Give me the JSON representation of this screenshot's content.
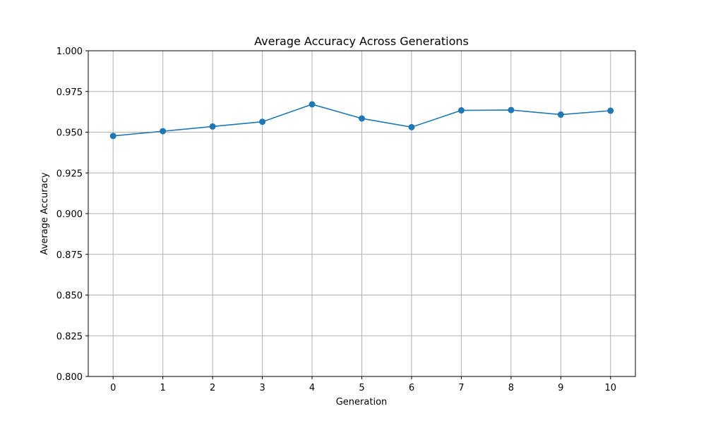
{
  "chart_data": {
    "type": "line",
    "title": "Average Accuracy Across Generations",
    "xlabel": "Generation",
    "ylabel": "Average Accuracy",
    "x": [
      0,
      1,
      2,
      3,
      4,
      5,
      6,
      7,
      8,
      9,
      10
    ],
    "xlim": [
      -0.5,
      10.5
    ],
    "ylim": [
      0.8,
      1.0
    ],
    "xticks": [
      "0",
      "1",
      "2",
      "3",
      "4",
      "5",
      "6",
      "7",
      "8",
      "9",
      "10"
    ],
    "yticks": [
      "0.800",
      "0.825",
      "0.850",
      "0.875",
      "0.900",
      "0.925",
      "0.950",
      "0.975",
      "1.000"
    ],
    "grid": true,
    "series": [
      {
        "values": [
          0.9477,
          0.9506,
          0.9535,
          0.9564,
          0.9671,
          0.9584,
          0.9531,
          0.9634,
          0.9636,
          0.9608,
          0.9632
        ],
        "color": "#1f77b4",
        "marker": "circle"
      }
    ]
  }
}
